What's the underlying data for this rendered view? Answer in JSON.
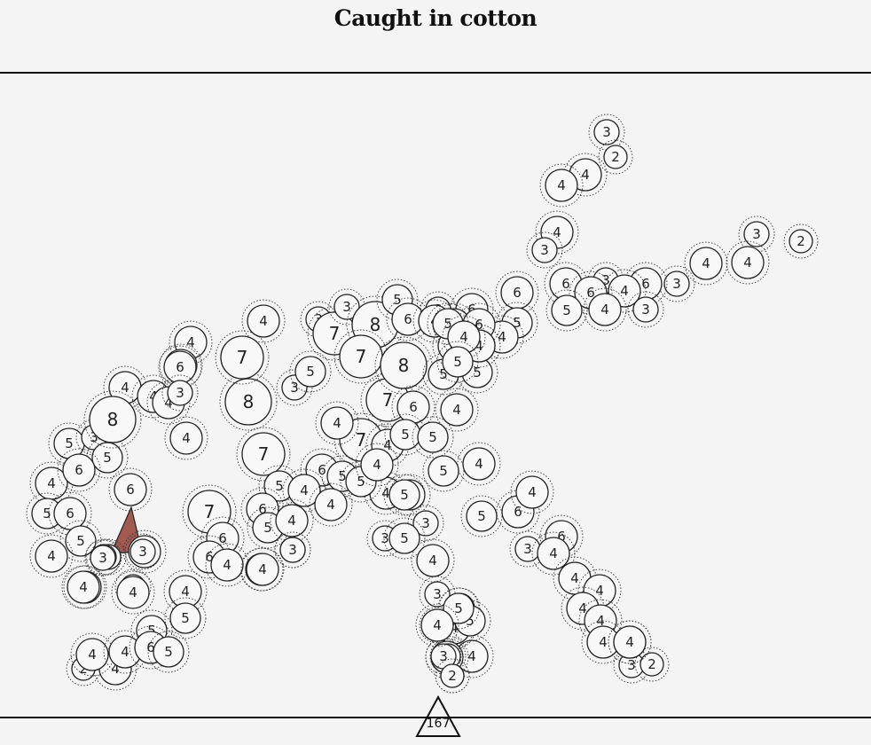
{
  "title": "Caught in cotton",
  "counter": "167",
  "colors": {
    "background": "#f5f4f4",
    "ink": "#111111",
    "selected_fill": "#a05a52"
  },
  "selected_path": [
    12,
    11,
    10
  ],
  "nodes": [
    {
      "v": "3"
    },
    {
      "v": "2"
    },
    {
      "v": "4"
    },
    {
      "v": "4"
    },
    {
      "v": "4"
    },
    {
      "v": "3"
    },
    {
      "v": "3"
    },
    {
      "v": "2"
    },
    {
      "v": "4"
    },
    {
      "v": "4"
    },
    {
      "v": "6"
    },
    {
      "v": "3"
    },
    {
      "v": "3"
    },
    {
      "v": "6"
    },
    {
      "v": "4"
    },
    {
      "v": "6"
    },
    {
      "v": "5"
    },
    {
      "v": "4"
    },
    {
      "v": "3"
    },
    {
      "v": "6"
    },
    {
      "v": "4"
    },
    {
      "v": "3"
    },
    {
      "v": "5"
    },
    {
      "v": "4"
    },
    {
      "v": "7"
    },
    {
      "v": "3"
    },
    {
      "v": "8"
    },
    {
      "v": "5"
    },
    {
      "v": "6"
    },
    {
      "v": "3"
    },
    {
      "v": "6"
    },
    {
      "v": "4"
    },
    {
      "v": "4"
    },
    {
      "v": "4"
    },
    {
      "v": "6"
    },
    {
      "v": "4"
    },
    {
      "v": "4"
    },
    {
      "v": "4"
    },
    {
      "v": "4"
    },
    {
      "v": "4"
    },
    {
      "v": "4"
    },
    {
      "v": "5"
    },
    {
      "v": "3"
    },
    {
      "v": "4"
    },
    {
      "v": "2"
    },
    {
      "v": "4"
    },
    {
      "v": "4"
    },
    {
      "v": "7"
    },
    {
      "v": "6"
    },
    {
      "v": "5"
    },
    {
      "v": "6"
    },
    {
      "v": "5"
    },
    {
      "v": "6"
    },
    {
      "v": "5"
    },
    {
      "v": "4"
    },
    {
      "v": "4"
    },
    {
      "v": "3"
    },
    {
      "v": "7"
    },
    {
      "v": "8"
    },
    {
      "v": "4"
    },
    {
      "v": "5"
    },
    {
      "v": "5"
    },
    {
      "v": "7"
    },
    {
      "v": "6"
    },
    {
      "v": "4"
    },
    {
      "v": "6"
    },
    {
      "v": "5"
    },
    {
      "v": "3"
    },
    {
      "v": "6"
    },
    {
      "v": "5"
    },
    {
      "v": "4"
    },
    {
      "v": "3"
    },
    {
      "v": "7"
    },
    {
      "v": "6"
    },
    {
      "v": "4"
    },
    {
      "v": "7"
    },
    {
      "v": "4"
    },
    {
      "v": "5"
    },
    {
      "v": "7"
    },
    {
      "v": "8"
    },
    {
      "v": "4"
    },
    {
      "v": "6"
    },
    {
      "v": "5"
    },
    {
      "v": "5"
    },
    {
      "v": "4"
    },
    {
      "v": "5"
    },
    {
      "v": "5"
    },
    {
      "v": "4"
    },
    {
      "v": "5"
    },
    {
      "v": "4"
    },
    {
      "v": "5"
    },
    {
      "v": "5"
    },
    {
      "v": "4"
    },
    {
      "v": "3"
    },
    {
      "v": "5"
    },
    {
      "v": "3"
    },
    {
      "v": "4"
    },
    {
      "v": "4"
    },
    {
      "v": "5"
    },
    {
      "v": "4"
    },
    {
      "v": "3"
    },
    {
      "v": "4"
    },
    {
      "v": "3"
    },
    {
      "v": "2"
    },
    {
      "v": "4"
    },
    {
      "v": "5"
    },
    {
      "v": "4"
    },
    {
      "v": "8"
    },
    {
      "v": "4"
    },
    {
      "v": "5"
    },
    {
      "v": "6"
    },
    {
      "v": "4"
    },
    {
      "v": "5"
    },
    {
      "v": "3"
    },
    {
      "v": "4"
    },
    {
      "v": "4"
    },
    {
      "v": "3"
    },
    {
      "v": "6"
    },
    {
      "v": "5"
    },
    {
      "v": "4"
    },
    {
      "v": "6"
    },
    {
      "v": "4"
    },
    {
      "v": "3"
    },
    {
      "v": "3"
    },
    {
      "v": "4"
    },
    {
      "v": "6"
    },
    {
      "v": "3"
    },
    {
      "v": "6"
    },
    {
      "v": "4"
    },
    {
      "v": "4"
    },
    {
      "v": "4"
    },
    {
      "v": "4"
    },
    {
      "v": "4"
    },
    {
      "v": "4"
    },
    {
      "v": "3"
    },
    {
      "v": "2"
    },
    {
      "v": "3"
    },
    {
      "v": "3"
    },
    {
      "v": "2"
    },
    {
      "v": "5"
    },
    {
      "v": "4"
    },
    {
      "v": "5"
    },
    {
      "v": "4"
    },
    {
      "v": "4"
    },
    {
      "v": "5"
    },
    {
      "v": "5"
    },
    {
      "v": "4"
    },
    {
      "v": "3"
    },
    {
      "v": "3"
    },
    {
      "v": "4"
    }
  ]
}
